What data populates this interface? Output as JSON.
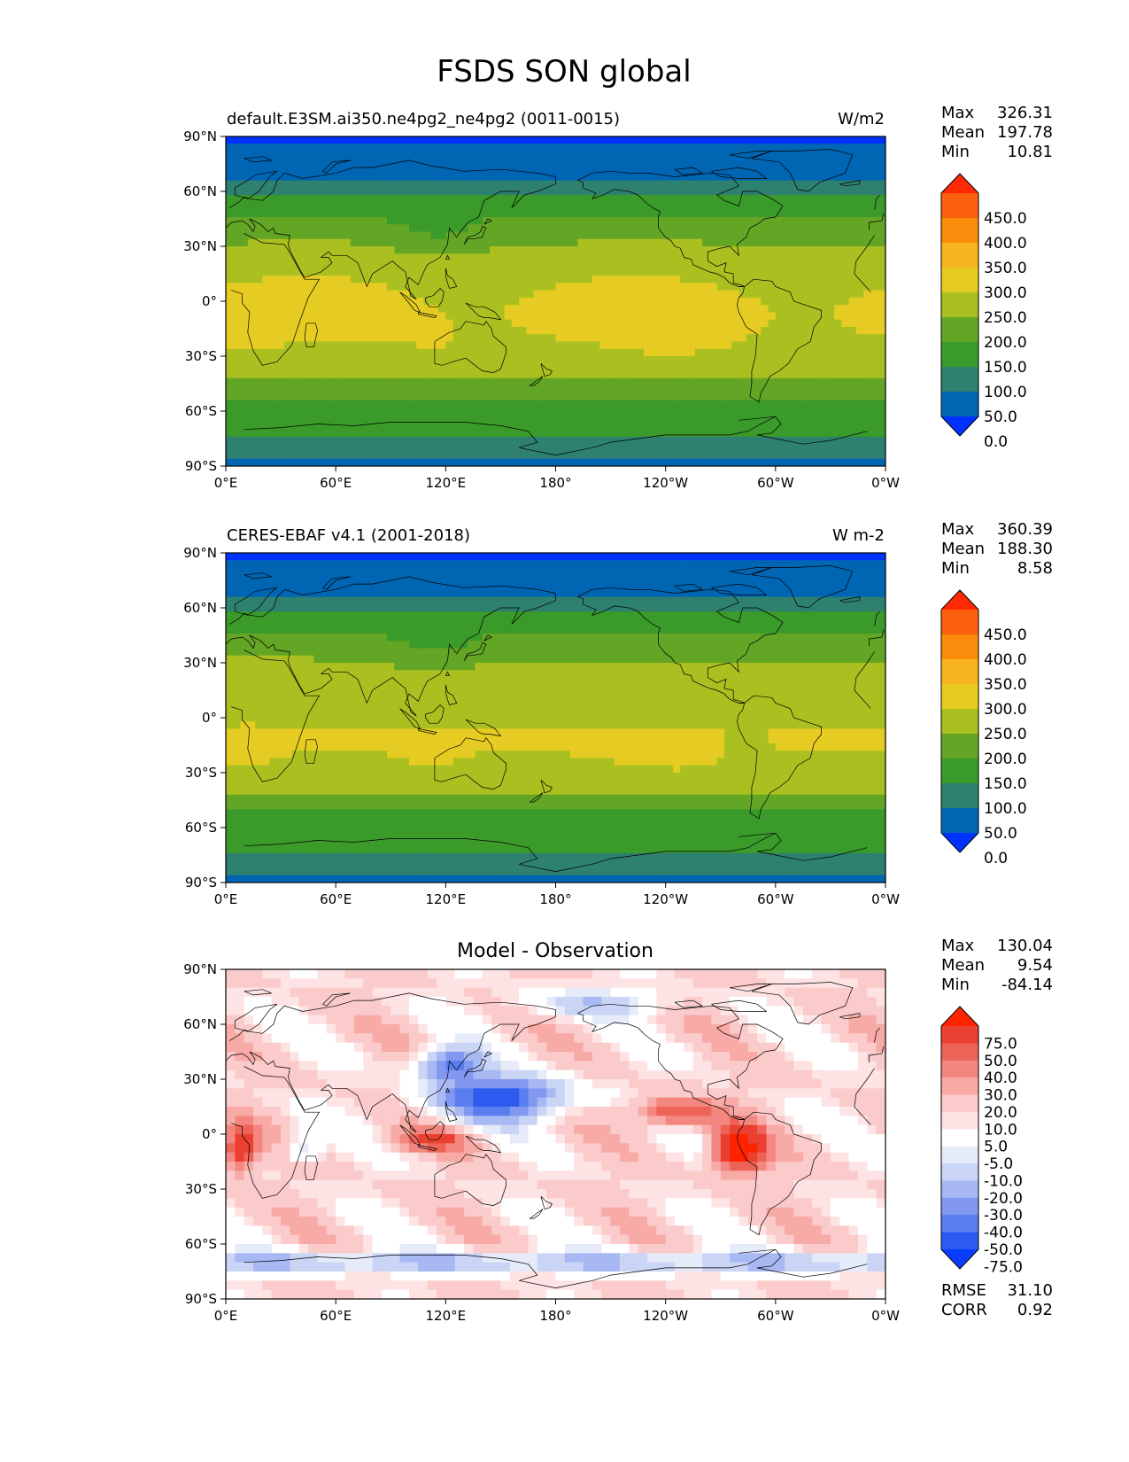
{
  "figure_title": "FSDS SON global",
  "colors": {
    "field": [
      "#0032ff",
      "#0066b3",
      "#2e8070",
      "#3a9a2a",
      "#63a524",
      "#a9c020",
      "#e6cc22",
      "#f7b420",
      "#fb8b0b",
      "#fb600d",
      "#ff2a05"
    ],
    "diff": [
      "#0a3cff",
      "#2d5bef",
      "#5a7ef0",
      "#8197f0",
      "#a8b8f2",
      "#cad5f6",
      "#e6ebfa",
      "#ffffff",
      "#fde3e3",
      "#fbcaca",
      "#f8aaa6",
      "#f3877f",
      "#ee6357",
      "#ea4031",
      "#ff2400"
    ],
    "coast": "#000000"
  },
  "chart_data": [
    {
      "type": "heatmap",
      "name": "test",
      "title": "default.E3SM.ai350.ne4pg2_ne4pg2 (0011-0015)",
      "units": "W/m2",
      "xticks": [
        "0°E",
        "60°E",
        "120°E",
        "180°",
        "120°W",
        "60°W",
        "0°W"
      ],
      "yticks": [
        "90°N",
        "60°N",
        "30°N",
        "0°",
        "30°S",
        "60°S",
        "90°S"
      ],
      "xlim": [
        0,
        360
      ],
      "ylim": [
        -90,
        90
      ],
      "stats": [
        {
          "label": "Max",
          "value": "326.31"
        },
        {
          "label": "Mean",
          "value": "197.78"
        },
        {
          "label": "Min",
          "value": "10.81"
        }
      ],
      "colorbar_labels": [
        "450.0",
        "400.0",
        "350.0",
        "300.0",
        "250.0",
        "200.0",
        "150.0",
        "100.0",
        "50.0",
        "0.0"
      ],
      "colorbar_levels": [
        0,
        50,
        100,
        150,
        200,
        250,
        300,
        350,
        400,
        450
      ]
    },
    {
      "type": "heatmap",
      "name": "reference",
      "title": "CERES-EBAF v4.1 (2001-2018)",
      "units": "W m-2",
      "xticks": [
        "0°E",
        "60°E",
        "120°E",
        "180°",
        "120°W",
        "60°W",
        "0°W"
      ],
      "yticks": [
        "90°N",
        "60°N",
        "30°N",
        "0°",
        "30°S",
        "60°S",
        "90°S"
      ],
      "xlim": [
        0,
        360
      ],
      "ylim": [
        -90,
        90
      ],
      "stats": [
        {
          "label": "Max",
          "value": "360.39"
        },
        {
          "label": "Mean",
          "value": "188.30"
        },
        {
          "label": "Min",
          "value": "8.58"
        }
      ],
      "colorbar_labels": [
        "450.0",
        "400.0",
        "350.0",
        "300.0",
        "250.0",
        "200.0",
        "150.0",
        "100.0",
        "50.0",
        "0.0"
      ],
      "colorbar_levels": [
        0,
        50,
        100,
        150,
        200,
        250,
        300,
        350,
        400,
        450
      ]
    },
    {
      "type": "heatmap",
      "name": "difference",
      "title": "Model - Observation",
      "xticks": [
        "0°E",
        "60°E",
        "120°E",
        "180°",
        "120°W",
        "60°W",
        "0°W"
      ],
      "yticks": [
        "90°N",
        "60°N",
        "30°N",
        "0°",
        "30°S",
        "60°S",
        "90°S"
      ],
      "xlim": [
        0,
        360
      ],
      "ylim": [
        -90,
        90
      ],
      "stats": [
        {
          "label": "Max",
          "value": "130.04"
        },
        {
          "label": "Mean",
          "value": "9.54"
        },
        {
          "label": "Min",
          "value": "-84.14"
        }
      ],
      "colorbar_labels": [
        "75.0",
        "50.0",
        "40.0",
        "30.0",
        "20.0",
        "10.0",
        "5.0",
        "-5.0",
        "-10.0",
        "-20.0",
        "-30.0",
        "-40.0",
        "-50.0",
        "-75.0"
      ],
      "colorbar_levels": [
        -75,
        -50,
        -40,
        -30,
        -20,
        -10,
        -5,
        5,
        10,
        20,
        30,
        40,
        50,
        75
      ],
      "metrics": [
        {
          "label": "RMSE",
          "value": "31.10"
        },
        {
          "label": "CORR",
          "value": "0.92"
        }
      ]
    }
  ]
}
